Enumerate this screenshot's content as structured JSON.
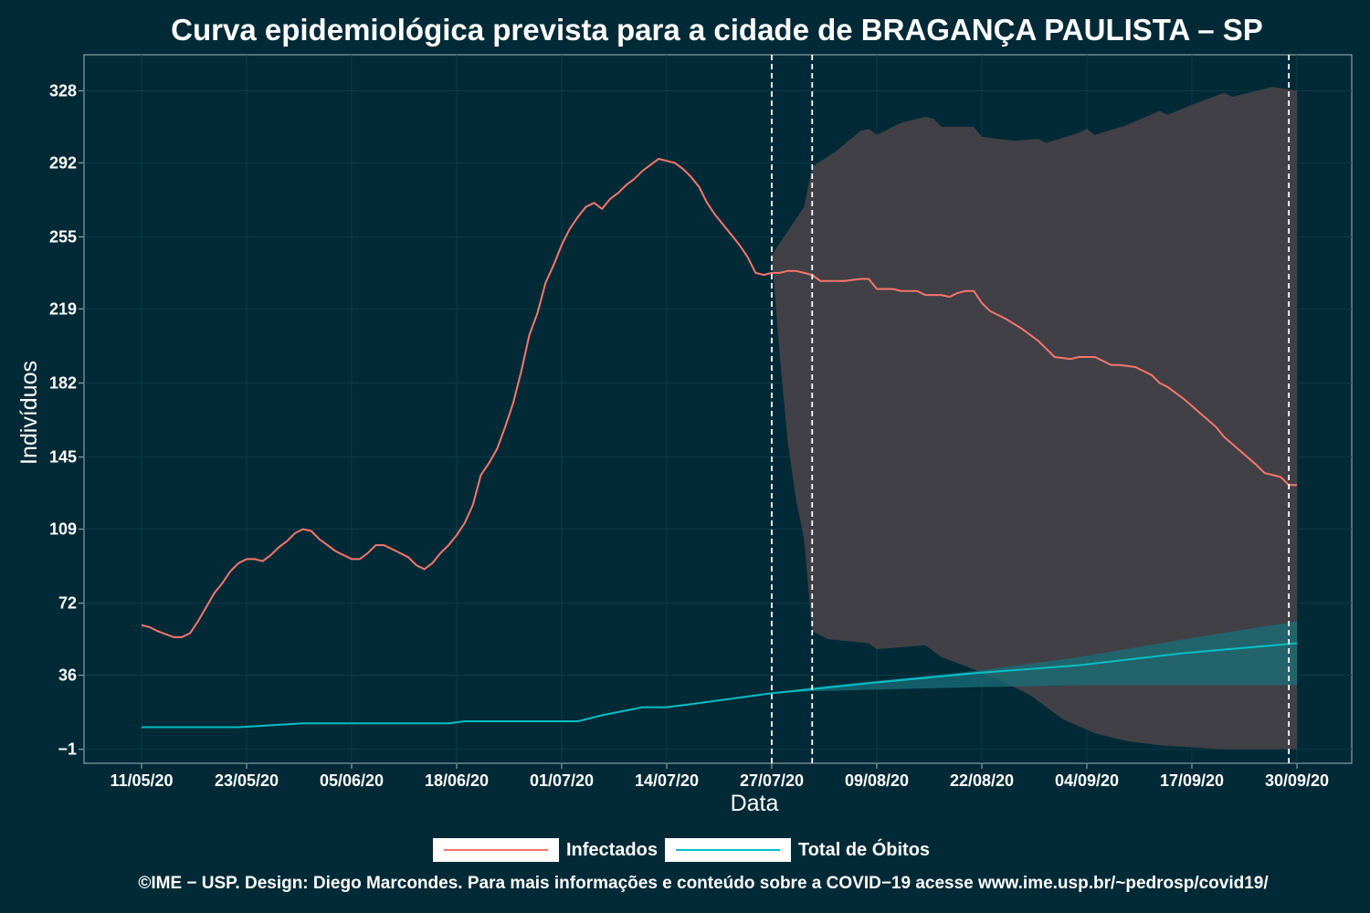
{
  "title": "Curva epidemiológica prevista para a cidade de BRAGANÇA PAULISTA – SP",
  "footer": "©IME − USP. Design: Diego Marcondes. Para mais informações e conteúdo sobre a COVID−19 acesse www.ime.usp.br/~pedrosp/covid19/",
  "legend": {
    "infectados": "Infectados",
    "obitos": "Total de Óbitos"
  },
  "colors": {
    "background": "#012a36",
    "infectados": "#f8766d",
    "obitos": "#00bfc4",
    "infectados_band": "#414046",
    "obitos_band": "#1a6f7a",
    "axis": "#8aa0a6"
  },
  "chart_data": {
    "type": "line",
    "title": "Curva epidemiológica prevista para a cidade de BRAGANÇA PAULISTA – SP",
    "xlabel": "Data",
    "ylabel": "Indivíduos",
    "x_tick_labels": [
      "11/05/20",
      "23/05/20",
      "05/06/20",
      "18/06/20",
      "01/07/20",
      "14/07/20",
      "27/07/20",
      "09/08/20",
      "22/08/20",
      "04/09/20",
      "17/09/20",
      "30/09/20"
    ],
    "y_ticks": [
      -1,
      36,
      72,
      109,
      145,
      182,
      219,
      255,
      292,
      328
    ],
    "xlim": [
      "2020-05-11",
      "2020-10-01"
    ],
    "ylim": [
      -8,
      346
    ],
    "vlines": [
      "2020-07-28",
      "2020-08-02",
      "2020-09-30"
    ],
    "grid": true,
    "legend_position": "bottom",
    "series": [
      {
        "name": "Infectados",
        "kind": "line",
        "points": [
          [
            "2020-05-11",
            61
          ],
          [
            "2020-05-12",
            60
          ],
          [
            "2020-05-13",
            58
          ],
          [
            "2020-05-15",
            55
          ],
          [
            "2020-05-16",
            55
          ],
          [
            "2020-05-17",
            57
          ],
          [
            "2020-05-18",
            63
          ],
          [
            "2020-05-19",
            70
          ],
          [
            "2020-05-20",
            77
          ],
          [
            "2020-05-21",
            82
          ],
          [
            "2020-05-22",
            88
          ],
          [
            "2020-05-23",
            92
          ],
          [
            "2020-05-24",
            94
          ],
          [
            "2020-05-25",
            94
          ],
          [
            "2020-05-26",
            93
          ],
          [
            "2020-05-27",
            96
          ],
          [
            "2020-05-28",
            100
          ],
          [
            "2020-05-29",
            103
          ],
          [
            "2020-05-30",
            107
          ],
          [
            "2020-05-31",
            109
          ],
          [
            "2020-06-01",
            108
          ],
          [
            "2020-06-02",
            104
          ],
          [
            "2020-06-03",
            101
          ],
          [
            "2020-06-04",
            98
          ],
          [
            "2020-06-05",
            96
          ],
          [
            "2020-06-06",
            94
          ],
          [
            "2020-06-07",
            94
          ],
          [
            "2020-06-08",
            97
          ],
          [
            "2020-06-09",
            101
          ],
          [
            "2020-06-10",
            101
          ],
          [
            "2020-06-11",
            99
          ],
          [
            "2020-06-13",
            95
          ],
          [
            "2020-06-14",
            91
          ],
          [
            "2020-06-15",
            89
          ],
          [
            "2020-06-16",
            92
          ],
          [
            "2020-06-17",
            97
          ],
          [
            "2020-06-18",
            101
          ],
          [
            "2020-06-19",
            106
          ],
          [
            "2020-06-20",
            112
          ],
          [
            "2020-06-21",
            121
          ],
          [
            "2020-06-22",
            136
          ],
          [
            "2020-06-23",
            142
          ],
          [
            "2020-06-24",
            149
          ],
          [
            "2020-06-25",
            160
          ],
          [
            "2020-06-26",
            172
          ],
          [
            "2020-06-27",
            188
          ],
          [
            "2020-06-28",
            206
          ],
          [
            "2020-06-29",
            217
          ],
          [
            "2020-06-30",
            232
          ],
          [
            "2020-07-01",
            241
          ],
          [
            "2020-07-02",
            251
          ],
          [
            "2020-07-03",
            259
          ],
          [
            "2020-07-04",
            265
          ],
          [
            "2020-07-05",
            270
          ],
          [
            "2020-07-06",
            272
          ],
          [
            "2020-07-07",
            269
          ],
          [
            "2020-07-08",
            274
          ],
          [
            "2020-07-09",
            277
          ],
          [
            "2020-07-10",
            281
          ],
          [
            "2020-07-11",
            284
          ],
          [
            "2020-07-12",
            288
          ],
          [
            "2020-07-13",
            291
          ],
          [
            "2020-07-14",
            294
          ],
          [
            "2020-07-15",
            293
          ],
          [
            "2020-07-16",
            292
          ],
          [
            "2020-07-17",
            289
          ],
          [
            "2020-07-18",
            285
          ],
          [
            "2020-07-19",
            280
          ],
          [
            "2020-07-20",
            272
          ],
          [
            "2020-07-21",
            266
          ],
          [
            "2020-07-22",
            261
          ],
          [
            "2020-07-23",
            256
          ],
          [
            "2020-07-24",
            251
          ],
          [
            "2020-07-25",
            245
          ],
          [
            "2020-07-26",
            237
          ],
          [
            "2020-07-27",
            236
          ],
          [
            "2020-07-28",
            237
          ],
          [
            "2020-07-29",
            237
          ],
          [
            "2020-07-30",
            238
          ],
          [
            "2020-07-31",
            238
          ],
          [
            "2020-08-01",
            237
          ],
          [
            "2020-08-02",
            236
          ],
          [
            "2020-08-03",
            233
          ],
          [
            "2020-08-04",
            233
          ],
          [
            "2020-08-06",
            233
          ],
          [
            "2020-08-08",
            234
          ],
          [
            "2020-08-09",
            234
          ],
          [
            "2020-08-10",
            229
          ],
          [
            "2020-08-12",
            229
          ],
          [
            "2020-08-13",
            228
          ],
          [
            "2020-08-15",
            228
          ],
          [
            "2020-08-16",
            226
          ],
          [
            "2020-08-18",
            226
          ],
          [
            "2020-08-19",
            225
          ],
          [
            "2020-08-20",
            227
          ],
          [
            "2020-08-21",
            228
          ],
          [
            "2020-08-22",
            228
          ],
          [
            "2020-08-23",
            222
          ],
          [
            "2020-08-24",
            218
          ],
          [
            "2020-08-26",
            214
          ],
          [
            "2020-08-28",
            209
          ],
          [
            "2020-08-30",
            203
          ],
          [
            "2020-08-31",
            199
          ],
          [
            "2020-09-01",
            195
          ],
          [
            "2020-09-03",
            194
          ],
          [
            "2020-09-04",
            195
          ],
          [
            "2020-09-06",
            195
          ],
          [
            "2020-09-07",
            193
          ],
          [
            "2020-09-08",
            191
          ],
          [
            "2020-09-09",
            191
          ],
          [
            "2020-09-11",
            190
          ],
          [
            "2020-09-12",
            188
          ],
          [
            "2020-09-13",
            186
          ],
          [
            "2020-09-14",
            182
          ],
          [
            "2020-09-15",
            180
          ],
          [
            "2020-09-17",
            174
          ],
          [
            "2020-09-19",
            167
          ],
          [
            "2020-09-21",
            160
          ],
          [
            "2020-09-22",
            155
          ],
          [
            "2020-09-24",
            148
          ],
          [
            "2020-09-26",
            141
          ],
          [
            "2020-09-27",
            137
          ],
          [
            "2020-09-29",
            135
          ],
          [
            "2020-09-30",
            131
          ],
          [
            "2020-10-01",
            131
          ]
        ]
      },
      {
        "name": "Total de Óbitos",
        "kind": "line",
        "points": [
          [
            "2020-05-11",
            10
          ],
          [
            "2020-05-23",
            10
          ],
          [
            "2020-05-31",
            12
          ],
          [
            "2020-06-05",
            12
          ],
          [
            "2020-06-18",
            12
          ],
          [
            "2020-06-20",
            13
          ],
          [
            "2020-07-04",
            13
          ],
          [
            "2020-07-07",
            16
          ],
          [
            "2020-07-12",
            20
          ],
          [
            "2020-07-15",
            20
          ],
          [
            "2020-07-17",
            21
          ],
          [
            "2020-07-28",
            27
          ],
          [
            "2020-08-02",
            29
          ],
          [
            "2020-08-09",
            32
          ],
          [
            "2020-08-22",
            37
          ],
          [
            "2020-09-04",
            41
          ],
          [
            "2020-09-17",
            47
          ],
          [
            "2020-10-01",
            52
          ]
        ]
      },
      {
        "name": "",
        "kind": "band",
        "fill": "infectados_band",
        "upper": [
          [
            "2020-07-28",
            246
          ],
          [
            "2020-07-30",
            258
          ],
          [
            "2020-08-01",
            270
          ],
          [
            "2020-08-02",
            290
          ],
          [
            "2020-08-05",
            298
          ],
          [
            "2020-08-08",
            308
          ],
          [
            "2020-08-09",
            309
          ],
          [
            "2020-08-10",
            306
          ],
          [
            "2020-08-13",
            312
          ],
          [
            "2020-08-16",
            315
          ],
          [
            "2020-08-17",
            314
          ],
          [
            "2020-08-18",
            310
          ],
          [
            "2020-08-22",
            310
          ],
          [
            "2020-08-23",
            305
          ],
          [
            "2020-08-27",
            303
          ],
          [
            "2020-08-30",
            304
          ],
          [
            "2020-08-31",
            302
          ],
          [
            "2020-09-04",
            307
          ],
          [
            "2020-09-05",
            309
          ],
          [
            "2020-09-06",
            306
          ],
          [
            "2020-09-10",
            311
          ],
          [
            "2020-09-14",
            318
          ],
          [
            "2020-09-15",
            316
          ],
          [
            "2020-09-18",
            321
          ],
          [
            "2020-09-22",
            327
          ],
          [
            "2020-09-23",
            325
          ],
          [
            "2020-09-28",
            330
          ],
          [
            "2020-10-01",
            328
          ]
        ],
        "lower": [
          [
            "2020-07-28",
            246
          ],
          [
            "2020-07-29",
            195
          ],
          [
            "2020-07-30",
            152
          ],
          [
            "2020-07-31",
            124
          ],
          [
            "2020-08-01",
            104
          ],
          [
            "2020-08-02",
            58
          ],
          [
            "2020-08-04",
            54
          ],
          [
            "2020-08-09",
            52
          ],
          [
            "2020-08-10",
            49
          ],
          [
            "2020-08-16",
            51
          ],
          [
            "2020-08-18",
            45
          ],
          [
            "2020-08-22",
            39
          ],
          [
            "2020-08-26",
            32
          ],
          [
            "2020-08-29",
            26
          ],
          [
            "2020-08-31",
            20
          ],
          [
            "2020-09-02",
            14
          ],
          [
            "2020-09-06",
            7
          ],
          [
            "2020-09-10",
            3
          ],
          [
            "2020-09-14",
            1
          ],
          [
            "2020-09-18",
            0
          ],
          [
            "2020-09-22",
            -1
          ],
          [
            "2020-10-01",
            -1
          ]
        ]
      },
      {
        "name": "",
        "kind": "band",
        "fill": "obitos_band",
        "upper": [
          [
            "2020-07-28",
            27
          ],
          [
            "2020-08-02",
            30
          ],
          [
            "2020-08-22",
            38
          ],
          [
            "2020-09-04",
            45
          ],
          [
            "2020-09-17",
            54
          ],
          [
            "2020-10-01",
            63
          ]
        ],
        "lower": [
          [
            "2020-07-28",
            27
          ],
          [
            "2020-08-02",
            28
          ],
          [
            "2020-08-22",
            30
          ],
          [
            "2020-09-04",
            31
          ],
          [
            "2020-09-17",
            31
          ],
          [
            "2020-10-01",
            31
          ]
        ]
      }
    ]
  }
}
